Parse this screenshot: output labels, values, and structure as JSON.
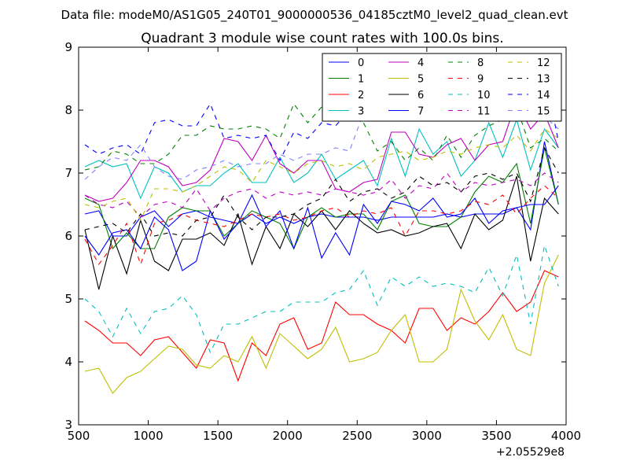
{
  "chart_data": {
    "type": "line",
    "suptitle": "Data file: modeM0/AS1G05_240T01_9000000536_04185cztM0_level2_quad_clean.evt",
    "title": "Quadrant 3 module wise count rates with 100.0s bins.",
    "xlabel": "",
    "ylabel": "",
    "x_offset_label": "+2.05529e8",
    "xlim": [
      500,
      4000
    ],
    "ylim": [
      3,
      9
    ],
    "xticks": [
      500,
      1000,
      1500,
      2000,
      2500,
      3000,
      3500,
      4000
    ],
    "yticks": [
      3,
      4,
      5,
      6,
      7,
      8,
      9
    ],
    "xtick_labels": [
      "500",
      "1000",
      "1500",
      "2000",
      "2500",
      "3000",
      "3500",
      "4000"
    ],
    "ytick_labels": [
      "3",
      "4",
      "5",
      "6",
      "7",
      "8",
      "9"
    ],
    "grid": false,
    "legend_position": "top-right",
    "x": [
      545,
      645,
      745,
      845,
      945,
      1045,
      1145,
      1245,
      1345,
      1445,
      1545,
      1645,
      1745,
      1845,
      1945,
      2045,
      2145,
      2245,
      2345,
      2445,
      2545,
      2645,
      2745,
      2845,
      2945,
      3045,
      3145,
      3245,
      3345,
      3445,
      3545,
      3645,
      3745,
      3845,
      3945
    ],
    "series": [
      {
        "name": "0",
        "color": "#0000ff",
        "dash": "solid",
        "values": [
          6.35,
          6.4,
          6.0,
          6.0,
          6.3,
          6.4,
          6.15,
          6.35,
          6.4,
          6.3,
          6.25,
          6.2,
          6.35,
          6.2,
          6.3,
          6.2,
          6.3,
          6.35,
          6.3,
          6.3,
          6.3,
          6.25,
          6.3,
          6.3,
          6.3,
          6.3,
          6.35,
          6.3,
          6.35,
          6.35,
          6.35,
          6.45,
          6.1,
          7.5,
          6.5
        ]
      },
      {
        "name": "1",
        "color": "#008000",
        "dash": "solid",
        "values": [
          6.6,
          6.5,
          5.8,
          6.05,
          5.8,
          5.8,
          6.3,
          6.45,
          6.4,
          6.4,
          6.0,
          6.2,
          6.4,
          6.3,
          6.2,
          5.8,
          6.3,
          6.45,
          6.3,
          6.35,
          6.35,
          6.1,
          6.55,
          6.65,
          6.2,
          6.15,
          6.15,
          6.3,
          6.7,
          6.95,
          6.85,
          7.15,
          6.2,
          7.4,
          6.5
        ]
      },
      {
        "name": "2",
        "color": "#ff0000",
        "dash": "solid",
        "values": [
          4.65,
          4.5,
          4.3,
          4.3,
          4.1,
          4.35,
          4.4,
          4.15,
          3.9,
          4.35,
          4.3,
          3.7,
          4.3,
          4.1,
          4.6,
          4.7,
          4.2,
          4.3,
          4.95,
          4.75,
          4.75,
          4.6,
          4.5,
          4.3,
          4.85,
          4.85,
          4.5,
          4.7,
          4.6,
          4.8,
          5.1,
          4.8,
          4.95,
          5.45,
          5.35
        ]
      },
      {
        "name": "3",
        "color": "#00bfbf",
        "dash": "solid",
        "values": [
          7.1,
          7.2,
          7.1,
          7.15,
          6.6,
          7.1,
          7.0,
          6.7,
          6.8,
          6.8,
          7.0,
          7.15,
          6.85,
          6.85,
          7.25,
          6.85,
          7.0,
          7.3,
          6.9,
          7.05,
          7.2,
          6.8,
          7.55,
          6.95,
          7.7,
          7.3,
          7.5,
          6.95,
          7.2,
          7.8,
          7.25,
          7.85,
          7.05,
          7.7,
          7.4
        ]
      },
      {
        "name": "4",
        "color": "#bf00bf",
        "dash": "solid",
        "values": [
          6.65,
          6.55,
          6.6,
          6.85,
          7.2,
          7.2,
          7.1,
          6.8,
          6.85,
          7.05,
          7.55,
          7.5,
          7.2,
          7.6,
          7.15,
          7.0,
          7.2,
          7.2,
          6.75,
          6.7,
          6.85,
          6.9,
          7.65,
          7.65,
          7.3,
          7.25,
          7.45,
          7.55,
          7.2,
          7.45,
          7.5,
          8.15,
          7.7,
          7.95,
          7.4
        ]
      },
      {
        "name": "5",
        "color": "#bfbf00",
        "dash": "solid",
        "values": [
          3.85,
          3.9,
          3.5,
          3.75,
          3.85,
          4.05,
          4.25,
          4.2,
          3.95,
          3.9,
          4.1,
          4.0,
          4.4,
          3.9,
          4.45,
          4.25,
          4.05,
          4.2,
          4.55,
          4.0,
          4.05,
          4.15,
          4.5,
          4.75,
          4.0,
          4.0,
          4.2,
          5.15,
          4.65,
          4.35,
          4.75,
          4.2,
          4.1,
          5.25,
          5.7
        ]
      },
      {
        "name": "6",
        "color": "#000000",
        "dash": "solid",
        "values": [
          6.1,
          5.15,
          6.0,
          5.4,
          6.25,
          5.6,
          5.45,
          5.95,
          5.95,
          6.05,
          5.85,
          6.35,
          5.55,
          6.15,
          5.8,
          6.35,
          6.15,
          6.4,
          6.1,
          6.4,
          6.2,
          6.05,
          6.1,
          6.0,
          6.05,
          6.15,
          6.2,
          5.8,
          6.35,
          6.1,
          6.25,
          6.95,
          5.6,
          6.6,
          6.35
        ]
      },
      {
        "name": "7",
        "color": "#0000ff",
        "dash": "solid",
        "values": [
          6.0,
          5.7,
          6.05,
          6.1,
          5.8,
          6.3,
          6.1,
          5.45,
          5.6,
          6.4,
          5.95,
          6.2,
          6.65,
          6.15,
          6.4,
          5.8,
          6.45,
          5.65,
          6.05,
          5.7,
          6.5,
          6.2,
          6.55,
          6.5,
          6.4,
          6.6,
          6.3,
          6.35,
          6.6,
          6.2,
          6.4,
          6.45,
          6.5,
          6.5,
          6.8
        ]
      },
      {
        "name": "8",
        "color": "#008000",
        "dash": "dashed",
        "values": [
          7.05,
          7.1,
          7.35,
          7.3,
          7.15,
          7.15,
          7.3,
          7.6,
          7.6,
          7.75,
          7.7,
          7.7,
          7.75,
          7.7,
          7.55,
          8.1,
          7.8,
          8.05,
          8.15,
          7.9,
          7.8,
          7.35,
          7.5,
          7.2,
          7.4,
          7.2,
          7.6,
          7.25,
          7.6,
          7.75,
          7.85,
          8.05,
          7.4,
          7.55,
          7.35
        ]
      },
      {
        "name": "9",
        "color": "#ff0000",
        "dash": "dashed",
        "values": [
          5.95,
          5.55,
          5.85,
          6.2,
          5.55,
          6.2,
          6.25,
          6.35,
          6.25,
          6.2,
          6.15,
          6.25,
          6.35,
          6.3,
          6.35,
          6.25,
          6.3,
          6.4,
          6.45,
          6.3,
          6.4,
          6.35,
          6.45,
          6.0,
          6.4,
          6.4,
          6.35,
          6.4,
          6.55,
          6.5,
          6.65,
          6.35,
          6.6,
          6.8,
          6.6
        ]
      },
      {
        "name": "10",
        "color": "#00bfbf",
        "dash": "dashed",
        "values": [
          5.0,
          4.8,
          4.4,
          4.85,
          4.45,
          4.8,
          4.85,
          5.05,
          4.75,
          4.15,
          4.6,
          4.6,
          4.7,
          4.8,
          4.8,
          4.95,
          4.95,
          4.95,
          5.1,
          5.15,
          5.45,
          4.9,
          5.35,
          5.2,
          5.35,
          5.2,
          5.25,
          5.2,
          5.1,
          5.5,
          5.05,
          5.7,
          4.6,
          5.85,
          5.2
        ]
      },
      {
        "name": "11",
        "color": "#bf00bf",
        "dash": "dashed",
        "values": [
          6.65,
          6.5,
          6.45,
          6.55,
          6.3,
          6.5,
          6.55,
          6.45,
          6.75,
          6.4,
          6.6,
          6.7,
          6.75,
          6.6,
          6.7,
          6.65,
          6.7,
          6.65,
          6.75,
          6.7,
          6.65,
          6.7,
          6.9,
          6.6,
          6.8,
          6.75,
          7.0,
          6.7,
          6.85,
          6.8,
          6.85,
          6.9,
          6.8,
          7.0,
          6.85
        ]
      },
      {
        "name": "12",
        "color": "#bfbf00",
        "dash": "dashed",
        "values": [
          6.5,
          6.45,
          6.55,
          6.6,
          6.25,
          6.75,
          6.75,
          6.7,
          6.8,
          6.95,
          7.1,
          7.05,
          6.85,
          7.2,
          7.1,
          7.0,
          7.15,
          7.2,
          7.1,
          7.15,
          7.05,
          7.25,
          7.3,
          7.35,
          7.2,
          7.25,
          7.35,
          7.3,
          7.4,
          7.45,
          7.4,
          7.6,
          7.35,
          7.7,
          7.55
        ]
      },
      {
        "name": "13",
        "color": "#000000",
        "dash": "dashed",
        "values": [
          6.1,
          6.15,
          6.2,
          6.05,
          6.35,
          6.0,
          6.05,
          6.0,
          6.25,
          6.3,
          6.65,
          6.3,
          6.1,
          6.3,
          6.3,
          6.35,
          6.5,
          6.6,
          6.9,
          6.55,
          6.7,
          6.75,
          6.6,
          6.7,
          6.95,
          6.8,
          6.85,
          6.7,
          6.95,
          7.0,
          6.9,
          7.0,
          6.55,
          7.4,
          7.0
        ]
      },
      {
        "name": "14",
        "color": "#0000ff",
        "dash": "dashed",
        "values": [
          7.45,
          7.3,
          7.4,
          7.45,
          7.3,
          7.8,
          7.85,
          7.75,
          7.75,
          8.1,
          7.55,
          7.6,
          7.55,
          7.6,
          7.2,
          7.65,
          7.55,
          7.8,
          7.75,
          8.0,
          8.35,
          7.9,
          7.95,
          8.5,
          7.8,
          8.4,
          8.2,
          8.2,
          8.3,
          8.35,
          8.55,
          8.0,
          8.25,
          8.6,
          7.5
        ]
      },
      {
        "name": "15",
        "color": "#8080ff",
        "dash": "dashed",
        "values": [
          6.9,
          7.1,
          7.25,
          7.2,
          7.45,
          7.1,
          6.95,
          6.9,
          7.05,
          7.1,
          7.2,
          7.1,
          7.15,
          7.15,
          7.3,
          7.2,
          7.3,
          7.3,
          7.4,
          7.35,
          7.95,
          8.1,
          8.65,
          8.0,
          8.3,
          8.3,
          8.4,
          8.3,
          8.5,
          8.4,
          8.1,
          8.2,
          8.7,
          7.9,
          7.7
        ]
      }
    ]
  }
}
